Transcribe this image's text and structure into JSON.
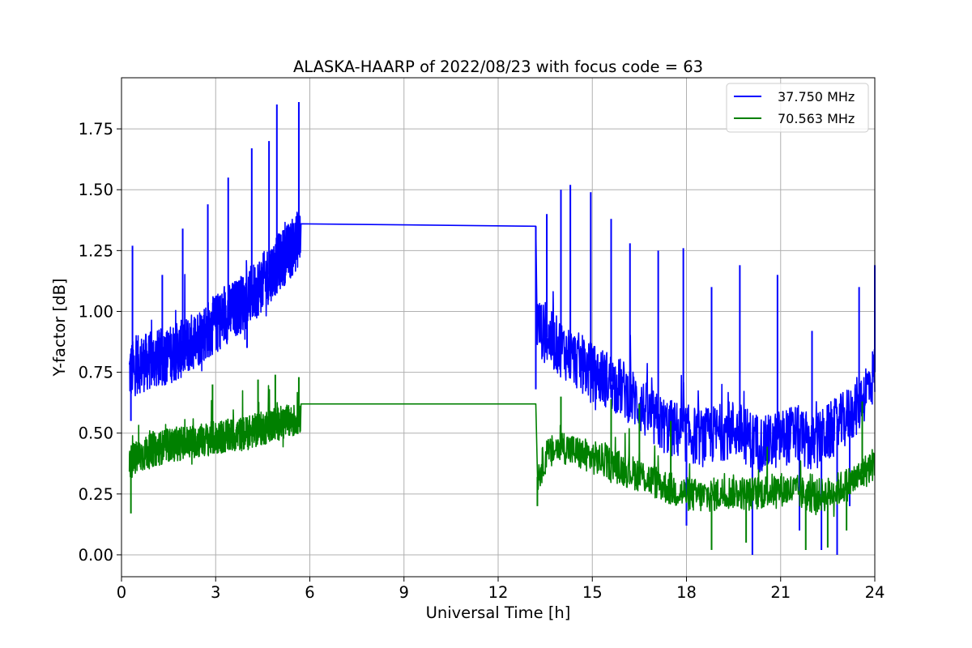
{
  "chart_data": {
    "type": "line",
    "title": "ALASKA-HAARP of 2022/08/23 with focus code = 63",
    "xlabel": "Universal Time [h]",
    "ylabel": "Y-factor [dB]",
    "xlim": [
      0,
      24
    ],
    "ylim": [
      -0.09,
      1.96
    ],
    "xticks": [
      0,
      3,
      6,
      9,
      12,
      15,
      18,
      21,
      24
    ],
    "xtick_labels": [
      "0",
      "3",
      "6",
      "9",
      "12",
      "15",
      "18",
      "21",
      "24"
    ],
    "yticks": [
      0.0,
      0.25,
      0.5,
      0.75,
      1.0,
      1.25,
      1.5,
      1.75
    ],
    "ytick_labels": [
      "0.00",
      "0.25",
      "0.50",
      "0.75",
      "1.00",
      "1.25",
      "1.50",
      "1.75"
    ],
    "grid": true,
    "legend_position": "top-right",
    "series": [
      {
        "name": "37.750 MHz",
        "color": "#0000ff",
        "x": [
          0.25,
          0.5,
          1.0,
          1.5,
          2.0,
          2.5,
          3.0,
          3.5,
          4.0,
          4.5,
          5.0,
          5.5,
          5.7,
          5.72,
          13.2,
          13.25,
          13.5,
          14.0,
          14.5,
          15.0,
          15.5,
          16.0,
          16.5,
          17.0,
          17.5,
          18.0,
          18.5,
          19.0,
          19.5,
          20.0,
          20.5,
          21.0,
          21.5,
          22.0,
          22.5,
          23.0,
          23.5,
          24.0
        ],
        "y": [
          0.75,
          0.78,
          0.8,
          0.82,
          0.85,
          0.9,
          0.95,
          1.0,
          1.05,
          1.12,
          1.2,
          1.27,
          1.32,
          1.36,
          1.35,
          0.95,
          0.9,
          0.85,
          0.8,
          0.75,
          0.72,
          0.68,
          0.62,
          0.55,
          0.52,
          0.5,
          0.48,
          0.5,
          0.52,
          0.48,
          0.45,
          0.48,
          0.5,
          0.45,
          0.5,
          0.55,
          0.62,
          0.75
        ],
        "spikes": [
          [
            0.35,
            1.27
          ],
          [
            1.3,
            1.15
          ],
          [
            1.95,
            1.34
          ],
          [
            2.75,
            1.44
          ],
          [
            3.4,
            1.55
          ],
          [
            4.15,
            1.67
          ],
          [
            4.7,
            1.7
          ],
          [
            4.95,
            1.85
          ],
          [
            5.65,
            1.86
          ],
          [
            13.55,
            1.4
          ],
          [
            14.0,
            1.5
          ],
          [
            14.3,
            1.52
          ],
          [
            14.95,
            1.49
          ],
          [
            15.6,
            1.38
          ],
          [
            16.2,
            1.28
          ],
          [
            17.1,
            1.25
          ],
          [
            17.9,
            1.26
          ],
          [
            18.8,
            1.1
          ],
          [
            19.7,
            1.19
          ],
          [
            20.9,
            1.15
          ],
          [
            22.0,
            0.92
          ],
          [
            23.5,
            1.1
          ],
          [
            24.0,
            1.19
          ]
        ],
        "dips": [
          [
            0.3,
            0.55
          ],
          [
            4.0,
            0.85
          ],
          [
            13.2,
            0.68
          ],
          [
            18.0,
            0.12
          ],
          [
            20.1,
            0.0
          ],
          [
            21.6,
            0.1
          ],
          [
            22.3,
            0.02
          ],
          [
            22.8,
            0.0
          ],
          [
            23.2,
            0.2
          ]
        ]
      },
      {
        "name": "70.563 MHz",
        "color": "#008000",
        "x": [
          0.25,
          0.5,
          1.0,
          1.5,
          2.0,
          2.5,
          3.0,
          3.5,
          4.0,
          4.5,
          5.0,
          5.5,
          5.7,
          5.72,
          13.2,
          13.25,
          13.5,
          14.0,
          14.5,
          15.0,
          15.5,
          16.0,
          16.5,
          17.0,
          17.5,
          18.0,
          18.5,
          19.0,
          19.5,
          20.0,
          20.5,
          21.0,
          21.5,
          22.0,
          22.5,
          23.0,
          23.5,
          24.0
        ],
        "y": [
          0.38,
          0.4,
          0.43,
          0.45,
          0.46,
          0.47,
          0.48,
          0.49,
          0.5,
          0.52,
          0.54,
          0.55,
          0.57,
          0.62,
          0.62,
          0.32,
          0.4,
          0.45,
          0.42,
          0.4,
          0.38,
          0.35,
          0.33,
          0.3,
          0.27,
          0.25,
          0.24,
          0.25,
          0.26,
          0.25,
          0.26,
          0.27,
          0.26,
          0.24,
          0.25,
          0.28,
          0.32,
          0.38
        ],
        "spikes": [
          [
            2.9,
            0.7
          ],
          [
            4.35,
            0.72
          ],
          [
            4.9,
            0.74
          ],
          [
            5.65,
            0.73
          ],
          [
            14.0,
            0.65
          ],
          [
            15.6,
            0.64
          ],
          [
            16.5,
            0.62
          ],
          [
            17.5,
            0.55
          ],
          [
            23.6,
            0.63
          ]
        ],
        "dips": [
          [
            0.3,
            0.17
          ],
          [
            13.25,
            0.2
          ],
          [
            18.8,
            0.02
          ],
          [
            19.9,
            0.05
          ],
          [
            21.8,
            0.02
          ],
          [
            22.5,
            0.03
          ],
          [
            23.1,
            0.1
          ]
        ]
      }
    ]
  }
}
